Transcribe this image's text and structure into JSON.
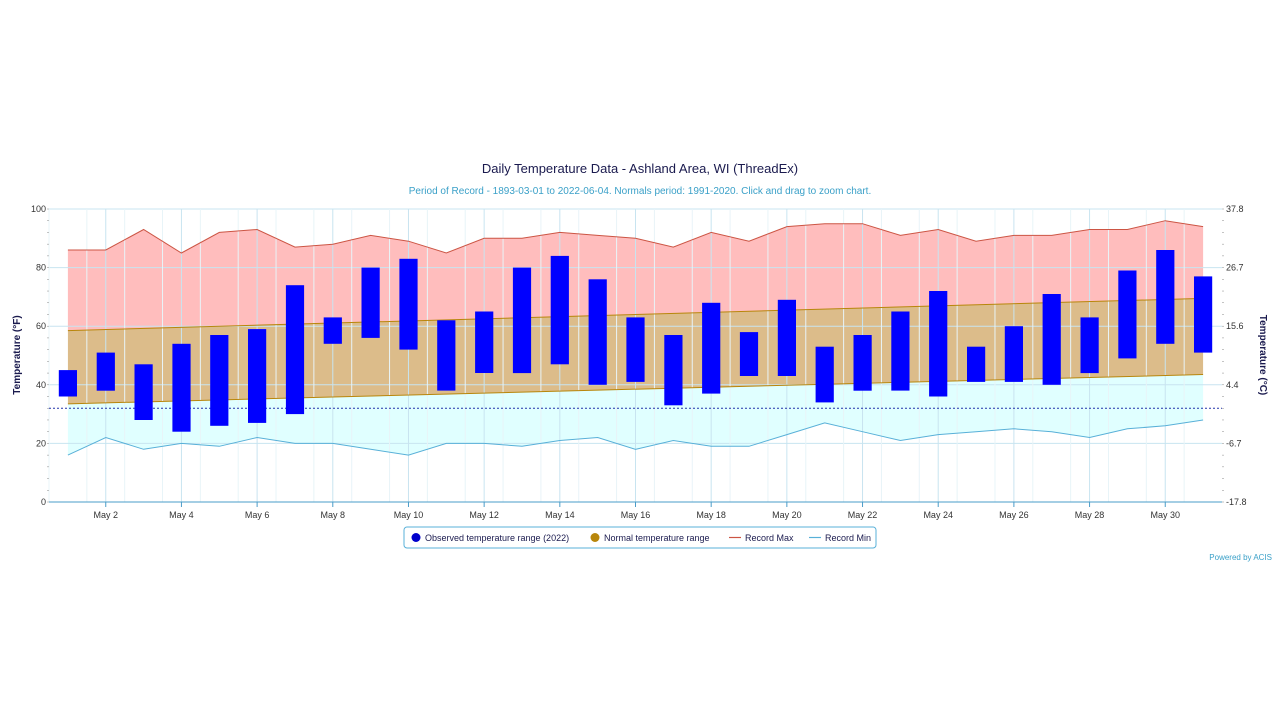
{
  "chart_data": {
    "type": "floating-bar-with-areas",
    "title": "Daily Temperature Data - Ashland Area, WI (ThreadEx)",
    "subtitle": "Period of Record - 1893-03-01 to 2022-06-04. Normals period: 1991-2020. Click and drag to zoom chart.",
    "ylabel_left": "Temperature (°F)",
    "ylabel_right": "Temperature (°C)",
    "ylim": [
      0,
      100
    ],
    "yticks_left": [
      "0",
      "20",
      "40",
      "60",
      "80",
      "100"
    ],
    "yticks_right": [
      "-17.8",
      "-6.7",
      "4.4",
      "15.6",
      "26.7",
      "37.8"
    ],
    "xticks": [
      "May 2",
      "May 4",
      "May 6",
      "May 8",
      "May 10",
      "May 12",
      "May 14",
      "May 16",
      "May 18",
      "May 20",
      "May 22",
      "May 24",
      "May 26",
      "May 28",
      "May 30"
    ],
    "freezing_line": 32,
    "days": [
      1,
      2,
      3,
      4,
      5,
      6,
      7,
      8,
      9,
      10,
      11,
      12,
      13,
      14,
      15,
      16,
      17,
      18,
      19,
      20,
      21,
      22,
      23,
      24,
      25,
      26,
      27,
      28,
      29,
      30,
      31
    ],
    "observed": [
      [
        36,
        45
      ],
      [
        38,
        51
      ],
      [
        28,
        47
      ],
      [
        24,
        54
      ],
      [
        26,
        57
      ],
      [
        27,
        59
      ],
      [
        30,
        74
      ],
      [
        54,
        63
      ],
      [
        56,
        80
      ],
      [
        52,
        83
      ],
      [
        38,
        62
      ],
      [
        44,
        65
      ],
      [
        44,
        80
      ],
      [
        47,
        84
      ],
      [
        40,
        76
      ],
      [
        41,
        63
      ],
      [
        33,
        57
      ],
      [
        37,
        68
      ],
      [
        43,
        58
      ],
      [
        43,
        69
      ],
      [
        34,
        53
      ],
      [
        38,
        57
      ],
      [
        38,
        65
      ],
      [
        36,
        72
      ],
      [
        41,
        53
      ],
      [
        41,
        60
      ],
      [
        40,
        71
      ],
      [
        44,
        63
      ],
      [
        49,
        79
      ],
      [
        54,
        86
      ],
      [
        51,
        77
      ]
    ],
    "normal_low_range": [
      33.5,
      43.5
    ],
    "normal_high_range": [
      58.5,
      69.5
    ],
    "record_max": [
      86,
      86,
      93,
      85,
      92,
      93,
      87,
      88,
      91,
      89,
      85,
      90,
      90,
      92,
      91,
      90,
      87,
      92,
      89,
      94,
      95,
      95,
      91,
      93,
      89,
      91,
      91,
      93,
      93,
      96,
      94
    ],
    "record_min": [
      16,
      22,
      18,
      20,
      19,
      22,
      20,
      20,
      18,
      16,
      20,
      20,
      19,
      21,
      22,
      18,
      21,
      19,
      19,
      23,
      27,
      24,
      21,
      23,
      24,
      25,
      24,
      22,
      25,
      26,
      28
    ],
    "legend": [
      "Observed temperature range (2022)",
      "Normal temperature range",
      "Record Max",
      "Record Min"
    ],
    "legend_placement": "bottom-center",
    "colors": {
      "observed": "#0000ff",
      "normal": "#b8860b",
      "normal_fill": "#dcbc8a",
      "record_max": "#cc5544",
      "record_max_fill": "#ffbdbd",
      "record_min": "#58b0d8",
      "record_min_fill": "#e0ffff",
      "freezing": "#2233aa",
      "grid": "#c8e4f0"
    },
    "credit": "Powered by ACIS"
  }
}
